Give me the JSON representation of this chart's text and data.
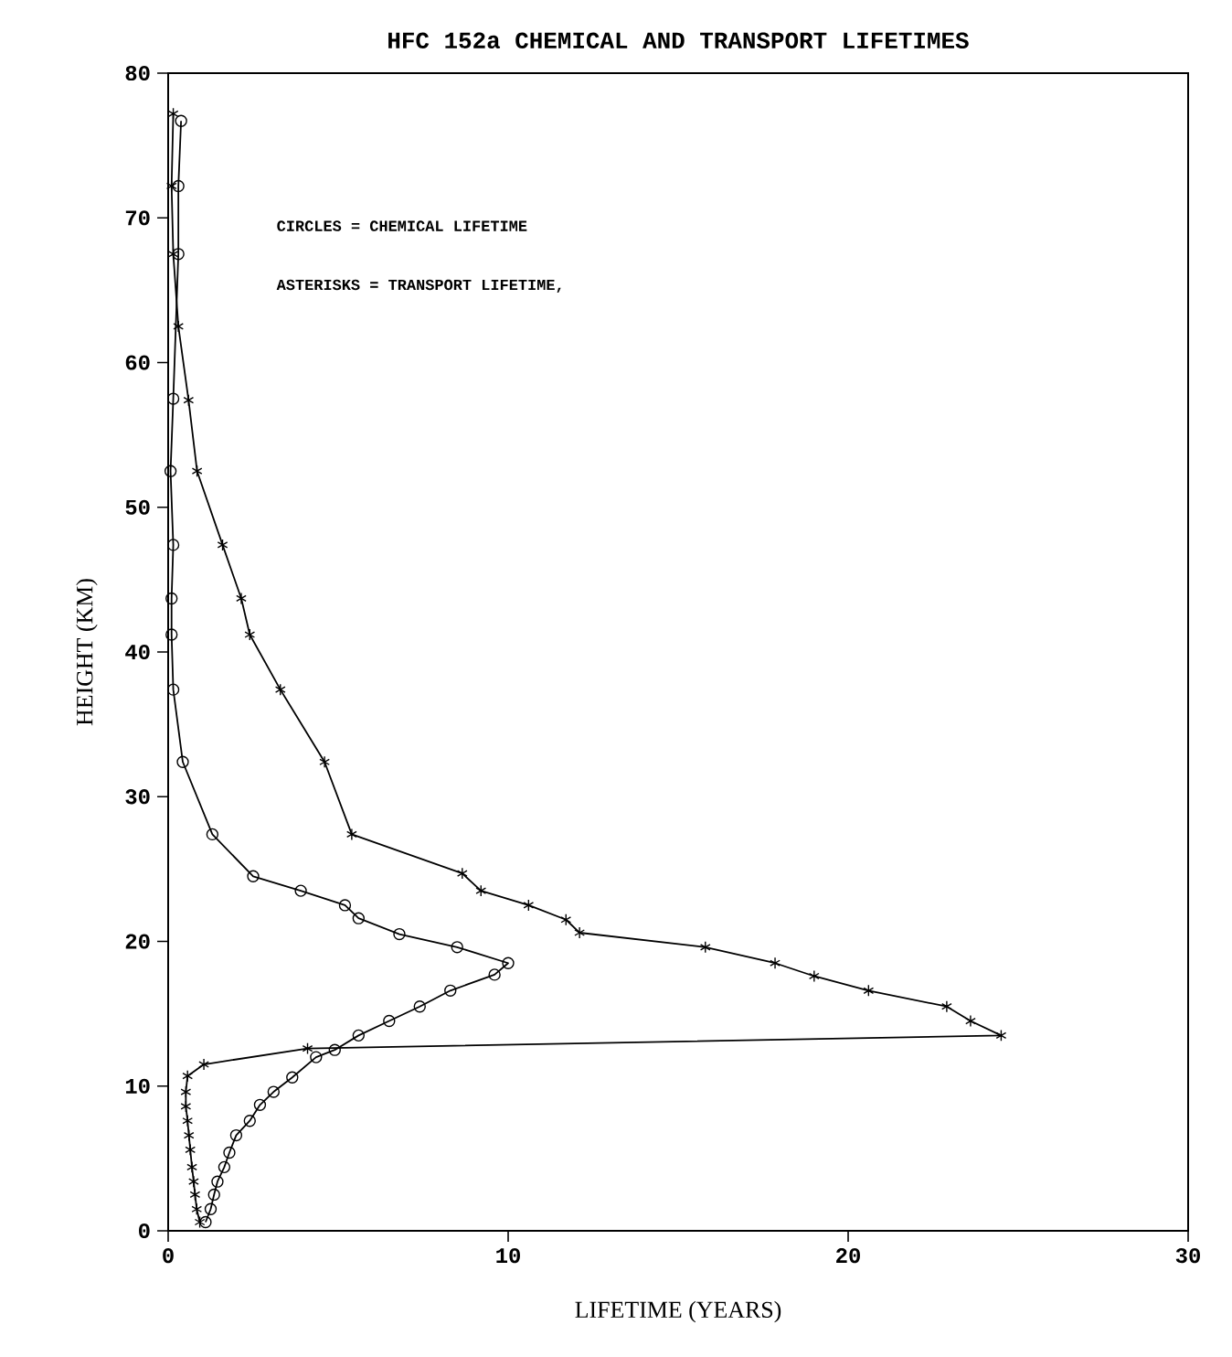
{
  "chart_data": {
    "type": "line",
    "title": "HFC 152a  CHEMICAL AND TRANSPORT LIFETIMES",
    "xlabel": "LIFETIME (YEARS)",
    "ylabel": "HEIGHT (KM)",
    "annotations": [
      "CIRCLES = CHEMICAL LIFETIME",
      "ASTERISKS = TRANSPORT LIFETIME,"
    ],
    "xlim": [
      0,
      30
    ],
    "ylim": [
      0,
      80
    ],
    "xticks": [
      0,
      10,
      20,
      30
    ],
    "yticks": [
      0,
      10,
      20,
      30,
      40,
      50,
      60,
      70,
      80
    ],
    "grid": false,
    "line_style": "solid",
    "series": [
      {
        "color": "#000000",
        "marker": "circle",
        "x": [
          0.38,
          0.3,
          0.3,
          0.15,
          0.07,
          0.15,
          0.1,
          0.1,
          0.15,
          0.43,
          1.3,
          2.5,
          3.9,
          5.2,
          5.6,
          6.8,
          8.5,
          10.0,
          9.6,
          8.3,
          7.4,
          6.5,
          5.6,
          4.9,
          4.35,
          3.65,
          3.1,
          2.7,
          2.4,
          2.0,
          1.8,
          1.65,
          1.45,
          1.35,
          1.25,
          1.1
        ],
        "values": [
          76.7,
          72.2,
          67.5,
          57.5,
          52.5,
          47.4,
          43.7,
          41.2,
          37.4,
          32.4,
          27.4,
          24.5,
          23.5,
          22.5,
          21.6,
          20.5,
          19.6,
          18.5,
          17.7,
          16.6,
          15.5,
          14.5,
          13.5,
          12.5,
          12.0,
          10.6,
          9.6,
          8.7,
          7.6,
          6.6,
          5.4,
          4.4,
          3.4,
          2.5,
          1.5,
          0.6
        ]
      },
      {
        "color": "#000000",
        "marker": "cross",
        "x": [
          0.15,
          0.1,
          0.15,
          0.3,
          0.6,
          0.85,
          1.6,
          2.15,
          2.4,
          3.3,
          4.6,
          5.4,
          8.65,
          9.2,
          10.6,
          11.7,
          12.1,
          15.8,
          17.85,
          19.0,
          20.6,
          22.9,
          23.6,
          24.5,
          4.1,
          1.05,
          0.57,
          0.52,
          0.52,
          0.57,
          0.61,
          0.65,
          0.7,
          0.75,
          0.79,
          0.84,
          0.93
        ],
        "values": [
          77.2,
          72.2,
          67.5,
          62.5,
          57.4,
          52.5,
          47.4,
          43.7,
          41.2,
          37.4,
          32.4,
          27.4,
          24.7,
          23.5,
          22.5,
          21.5,
          20.6,
          19.6,
          18.5,
          17.6,
          16.6,
          15.5,
          14.5,
          13.5,
          12.6,
          11.5,
          10.7,
          9.6,
          8.6,
          7.6,
          6.6,
          5.6,
          4.4,
          3.4,
          2.5,
          1.5,
          0.6
        ]
      }
    ]
  }
}
